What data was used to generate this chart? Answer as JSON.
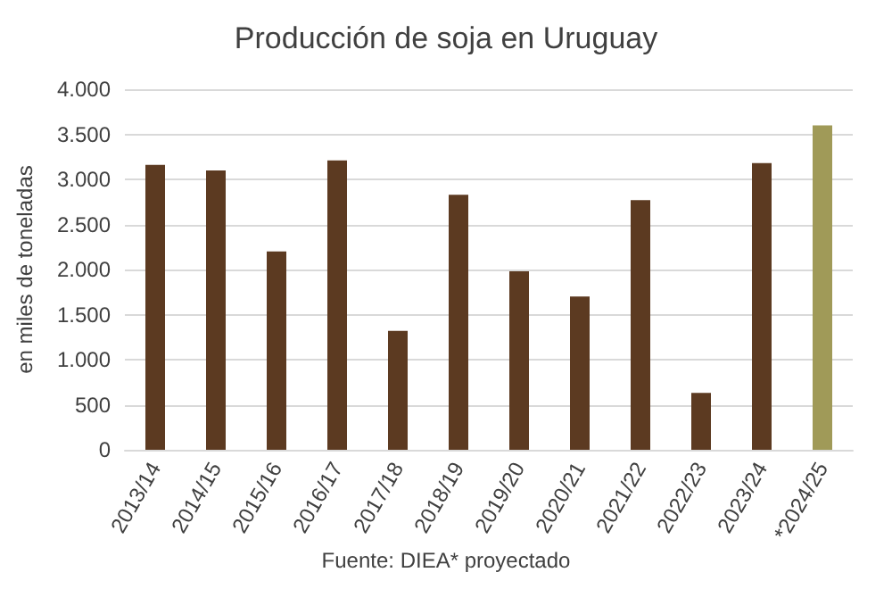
{
  "chart_data": {
    "type": "bar",
    "title": "Producción de soja en Uruguay",
    "ylabel": "en miles de toneladas",
    "categories": [
      "2013/14",
      "2014/15",
      "2015/16",
      "2016/17",
      "2017/18",
      "2018/19",
      "2019/20",
      "2020/21",
      "2021/22",
      "2022/23",
      "2023/24",
      "*2024/25"
    ],
    "values": [
      3160,
      3100,
      2200,
      3210,
      1320,
      2830,
      1980,
      1700,
      2770,
      630,
      3180,
      3600
    ],
    "colors": [
      "#5c3a21",
      "#5c3a21",
      "#5c3a21",
      "#5c3a21",
      "#5c3a21",
      "#5c3a21",
      "#5c3a21",
      "#5c3a21",
      "#5c3a21",
      "#5c3a21",
      "#5c3a21",
      "#a09a58"
    ],
    "ylim": [
      0,
      4000
    ],
    "yticks": [
      0,
      500,
      {
        "value": 1000,
        "label": "1.000"
      },
      {
        "value": 1500,
        "label": "1.500"
      },
      {
        "value": 2000,
        "label": "2.000"
      },
      {
        "value": 2500,
        "label": "2.500"
      },
      {
        "value": 3000,
        "label": "3.000"
      },
      {
        "value": 3500,
        "label": "3.500"
      },
      {
        "value": 4000,
        "label": "4.000"
      }
    ],
    "grid": "y",
    "annotations": [
      "Fuente: DIEA* proyectado"
    ]
  }
}
